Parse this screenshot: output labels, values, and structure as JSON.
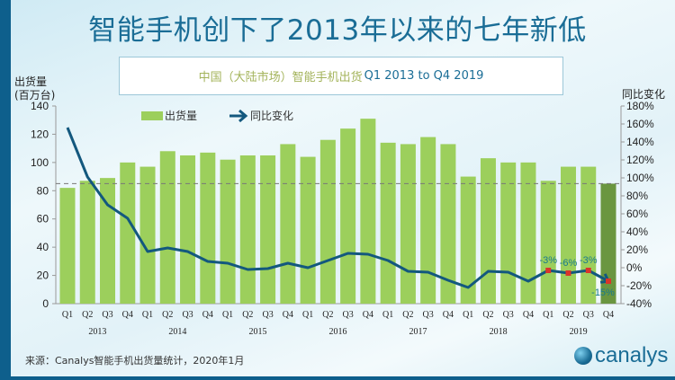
{
  "title": "智能手机创下了2013年以来的七年新低",
  "subtitle_cn": "中国（大陆市场）智能手机出货",
  "subtitle_en": "Q1 2013 to Q4 2019",
  "source": "来源：Canalys智能手机出货量统计，2020年1月",
  "logo_text": "canalys",
  "colors": {
    "bar": "#9ccf5c",
    "bar_highlight": "#6a9640",
    "line": "#13587e",
    "marker": "#d9342b",
    "title": "#1a6d96"
  },
  "chart_data": {
    "type": "bar+line",
    "ylabel_left": "出货量\n(百万台)",
    "ylabel_left_lines": [
      "出货量",
      "(百万台)"
    ],
    "ylabel_right": "同比变化",
    "ylim_left": [
      0,
      140
    ],
    "yticks_left": [
      "0",
      "20",
      "40",
      "60",
      "80",
      "100",
      "120",
      "140"
    ],
    "ylim_right": [
      -40,
      180
    ],
    "yticks_right": [
      "-40%",
      "-20%",
      "0%",
      "20%",
      "40%",
      "60%",
      "80%",
      "100%",
      "120%",
      "140%",
      "160%",
      "180%"
    ],
    "legend": [
      "出货量",
      "同比变化"
    ],
    "legend_position": "top-left",
    "years": [
      "2013",
      "2014",
      "2015",
      "2016",
      "2017",
      "2018",
      "2019"
    ],
    "quarters": [
      "Q1",
      "Q2",
      "Q3",
      "Q4"
    ],
    "reference_line": 85,
    "series": [
      {
        "name": "出货量",
        "type": "bar",
        "values": [
          82,
          87,
          89,
          100,
          97,
          108,
          105,
          107,
          102,
          105,
          105,
          113,
          104,
          116,
          124,
          131,
          114,
          113,
          118,
          113,
          90,
          103,
          100,
          100,
          87,
          97,
          97,
          85
        ]
      },
      {
        "name": "同比变化",
        "type": "line",
        "unit": "%",
        "values": [
          156,
          101,
          70,
          55,
          18,
          22,
          18,
          7,
          5,
          -2,
          -1,
          5,
          0,
          8,
          16,
          15,
          8,
          -4,
          -5,
          -14,
          -22,
          -4,
          -5,
          -15,
          -3,
          -6,
          -3,
          -15
        ]
      }
    ],
    "annotations": [
      {
        "index": 24,
        "label": "-3%"
      },
      {
        "index": 25,
        "label": "-6%"
      },
      {
        "index": 26,
        "label": "-3%"
      },
      {
        "index": 27,
        "label": "-15%"
      }
    ]
  }
}
